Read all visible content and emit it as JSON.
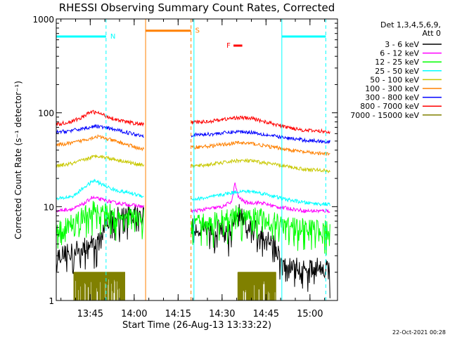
{
  "chart_data": {
    "type": "line",
    "title": "RHESSI Observing Summary Count Rates, Corrected",
    "xlabel": "Start Time (26-Aug-13 13:33:22)",
    "ylabel": "Corrected Count Rate (s⁻¹ detector⁻¹)",
    "y_log": true,
    "ylim": [
      1,
      1000
    ],
    "xlim_minutes_after_start": [
      0,
      96
    ],
    "x_ticks": [
      {
        "label": "13:45",
        "min": 11.6
      },
      {
        "label": "14:00",
        "min": 26.6
      },
      {
        "label": "14:15",
        "min": 41.6
      },
      {
        "label": "14:30",
        "min": 56.6
      },
      {
        "label": "14:45",
        "min": 71.6
      },
      {
        "label": "15:00",
        "min": 86.6
      }
    ],
    "y_ticks": [
      {
        "label": "1",
        "value": 1
      },
      {
        "label": "10",
        "value": 10
      },
      {
        "label": "100",
        "value": 100
      },
      {
        "label": "1000",
        "value": 1000
      }
    ],
    "legend": {
      "position": "right",
      "header_line1": "Det 1,3,4,5,6,9,",
      "header_line2": "Att 0"
    },
    "gaps_minutes": [
      [
        30,
        46
      ]
    ],
    "series": [
      {
        "name": "3 - 6 keV",
        "color": "#000000",
        "x": [
          0,
          5,
          10,
          15,
          17,
          20,
          24,
          29.5,
          47,
          52,
          57,
          60,
          62,
          65,
          68,
          70,
          72,
          74.5,
          77,
          80,
          85,
          91,
          93.5
        ],
        "y": [
          3.0,
          3.3,
          3.8,
          4.5,
          7.0,
          8.0,
          8.5,
          8.5,
          6.0,
          6.0,
          5.8,
          6.0,
          9.5,
          6.0,
          6.0,
          5.5,
          5.0,
          4.5,
          2.3,
          2.3,
          2.3,
          2.3,
          2.3
        ],
        "spiky": true
      },
      {
        "name": "6 - 12 keV",
        "color": "#ff00ff",
        "x": [
          0,
          6,
          10,
          12,
          15,
          20,
          25,
          29.5,
          47,
          52,
          57,
          60,
          61,
          62,
          63,
          65,
          70,
          75,
          80,
          85,
          93.5
        ],
        "y": [
          9.0,
          9.5,
          11.0,
          12.5,
          12.0,
          11.0,
          10.5,
          10.0,
          9.0,
          9.5,
          10.0,
          11.5,
          18.0,
          13.0,
          12.0,
          11.0,
          11.0,
          10.0,
          9.5,
          9.0,
          9.0
        ]
      },
      {
        "name": "12 - 25 keV",
        "color": "#00ff00",
        "x": [
          0,
          6,
          10,
          13,
          16,
          20,
          25,
          29.5,
          47,
          52,
          57,
          62,
          67,
          72,
          78,
          85,
          93.5
        ],
        "y": [
          5.5,
          7.0,
          8.5,
          9.5,
          9.0,
          8.5,
          8.0,
          7.5,
          6.5,
          7.0,
          7.5,
          8.5,
          8.5,
          7.5,
          6.5,
          6.0,
          5.8
        ],
        "spiky": true
      },
      {
        "name": "25 - 50 keV",
        "color": "#00ffff",
        "x": [
          0,
          6,
          10,
          13,
          16,
          20,
          25,
          29.5,
          47,
          52,
          57,
          62,
          67,
          72,
          78,
          85,
          93.5
        ],
        "y": [
          12.0,
          13.0,
          16.5,
          19.0,
          17.0,
          15.0,
          14.0,
          13.0,
          12.0,
          12.5,
          13.5,
          14.5,
          14.5,
          13.5,
          12.0,
          11.0,
          10.5
        ]
      },
      {
        "name": "50 - 100 keV",
        "color": "#c8c800",
        "x": [
          0,
          6,
          10,
          14,
          18,
          22,
          26,
          29.5,
          47,
          52,
          57,
          62,
          67,
          72,
          78,
          85,
          93.5
        ],
        "y": [
          27.0,
          29.0,
          32.0,
          35.0,
          33.0,
          31.0,
          29.0,
          28.0,
          27.0,
          28.0,
          29.5,
          31.0,
          30.5,
          29.0,
          27.0,
          25.0,
          24.0
        ]
      },
      {
        "name": "100 - 300 keV",
        "color": "#ff8000",
        "x": [
          0,
          6,
          10,
          14,
          18,
          22,
          26,
          29.5,
          47,
          52,
          57,
          62,
          67,
          72,
          78,
          85,
          93.5
        ],
        "y": [
          45.0,
          48.0,
          52.0,
          56.0,
          52.0,
          48.0,
          44.0,
          41.0,
          43.0,
          44.0,
          46.0,
          48.0,
          47.0,
          44.0,
          41.0,
          38.0,
          36.0
        ]
      },
      {
        "name": "300 - 800 keV",
        "color": "#0000ff",
        "x": [
          0,
          6,
          10,
          14,
          18,
          22,
          26,
          29.5,
          47,
          52,
          57,
          62,
          67,
          72,
          78,
          85,
          93.5
        ],
        "y": [
          62.0,
          65.0,
          69.0,
          72.0,
          68.0,
          64.0,
          60.0,
          57.0,
          58.0,
          59.0,
          61.0,
          63.0,
          62.0,
          58.0,
          54.0,
          51.0,
          49.0
        ]
      },
      {
        "name": "800 - 7000 keV",
        "color": "#ff0000",
        "x": [
          0,
          5,
          9,
          12,
          15,
          18,
          22,
          26,
          29.5,
          47,
          52,
          57,
          62,
          67,
          72,
          78,
          85,
          93.5
        ],
        "y": [
          75.0,
          80.0,
          90.0,
          103.0,
          98.0,
          90.0,
          82.0,
          78.0,
          75.0,
          79.0,
          81.0,
          85.0,
          89.0,
          87.0,
          79.0,
          71.0,
          65.0,
          63.0
        ]
      },
      {
        "name": "7000 - 15000 keV",
        "color": "#808000",
        "x": [
          6,
          23.5,
          62,
          75
        ],
        "y": [
          2.0,
          2.0,
          2.0,
          2.0
        ],
        "segments": [
          [
            6,
            23.5
          ],
          [
            62,
            75
          ]
        ],
        "bursty": true
      }
    ],
    "flag_bars": [
      {
        "label": "N",
        "color": "#00ffff",
        "y_value": 650,
        "ranges": [
          [
            0,
            17
          ],
          [
            77,
            92
          ]
        ]
      },
      {
        "label": "S",
        "color": "#ff8000",
        "y_value": 750,
        "ranges": [
          [
            30.5,
            46
          ]
        ]
      },
      {
        "label": "F",
        "color": "#ff0000",
        "y_value": 520,
        "ranges": [
          [
            60.5,
            63.5
          ]
        ]
      }
    ],
    "vertical_lines": [
      {
        "color": "#00ffff",
        "style": "dashed",
        "min": 17
      },
      {
        "color": "#ff8000",
        "style": "solid",
        "min": 30.5
      },
      {
        "color": "#ff8000",
        "style": "dashed",
        "min": 46
      },
      {
        "color": "#00ffff",
        "style": "solid",
        "min": 47
      },
      {
        "color": "#00ffff",
        "style": "solid",
        "min": 77
      },
      {
        "color": "#00ffff",
        "style": "dashed",
        "min": 92
      }
    ],
    "grid": false
  },
  "footer_timestamp": "22-Oct-2021 00:28"
}
